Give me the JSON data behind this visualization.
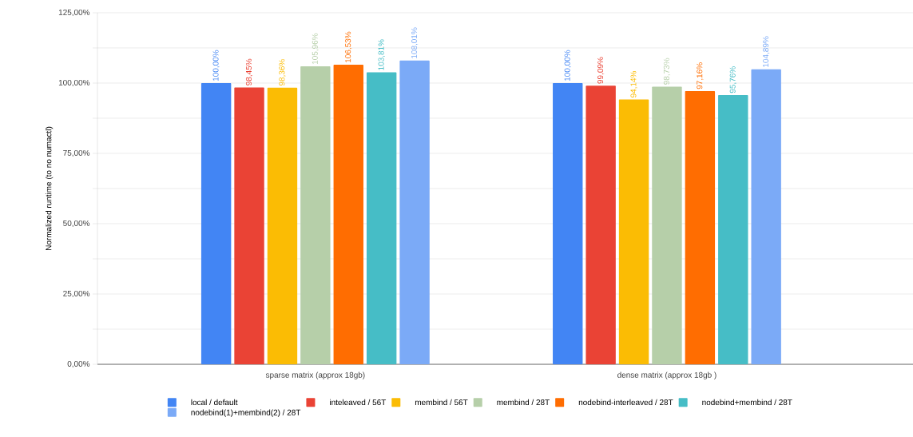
{
  "chart_data": {
    "type": "bar",
    "ylabel": "Normalized runtime (to no numactl)",
    "categories": [
      "sparse matrix (approx 18gb)",
      "dense matrix (approx 18gb )"
    ],
    "series": [
      {
        "name": "local / default",
        "color": "#4285f4",
        "values": [
          100.0,
          100.0
        ],
        "value_labels": [
          "100,00%",
          "100,00%"
        ]
      },
      {
        "name": "inteleaved / 56T",
        "color": "#ea4335",
        "values": [
          98.45,
          99.09
        ],
        "value_labels": [
          "98,45%",
          "99,09%"
        ]
      },
      {
        "name": "membind / 56T",
        "color": "#fbbc04",
        "values": [
          98.36,
          94.14
        ],
        "value_labels": [
          "98,36%",
          "94,14%"
        ]
      },
      {
        "name": "membind / 28T",
        "color": "#b6cfa9",
        "values": [
          105.96,
          98.73
        ],
        "value_labels": [
          "105,96%",
          "98,73%"
        ]
      },
      {
        "name": "nodebind-interleaved / 28T",
        "color": "#ff6d01",
        "values": [
          106.53,
          97.16
        ],
        "value_labels": [
          "106,53%",
          "97,16%"
        ]
      },
      {
        "name": "nodebind+membind / 28T",
        "color": "#46bdc6",
        "values": [
          103.81,
          95.76
        ],
        "value_labels": [
          "103,81%",
          "95,76%"
        ]
      },
      {
        "name": "nodebind(1)+membind(2) / 28T",
        "color": "#7baaf7",
        "values": [
          108.01,
          104.89
        ],
        "value_labels": [
          "108,01%",
          "104,89%"
        ]
      }
    ],
    "ylim": [
      0,
      125
    ],
    "yticks": [
      {
        "value": 0,
        "label": "0,00%"
      },
      {
        "value": 12.5,
        "label": null
      },
      {
        "value": 25,
        "label": "25,00%"
      },
      {
        "value": 37.5,
        "label": null
      },
      {
        "value": 50,
        "label": "50,00%"
      },
      {
        "value": 62.5,
        "label": null
      },
      {
        "value": 75,
        "label": "75,00%"
      },
      {
        "value": 87.5,
        "label": null
      },
      {
        "value": 100,
        "label": "100,00%"
      },
      {
        "value": 112.5,
        "label": null
      },
      {
        "value": 125,
        "label": "125,00%"
      }
    ],
    "grid": "y",
    "legend": "bottom"
  }
}
